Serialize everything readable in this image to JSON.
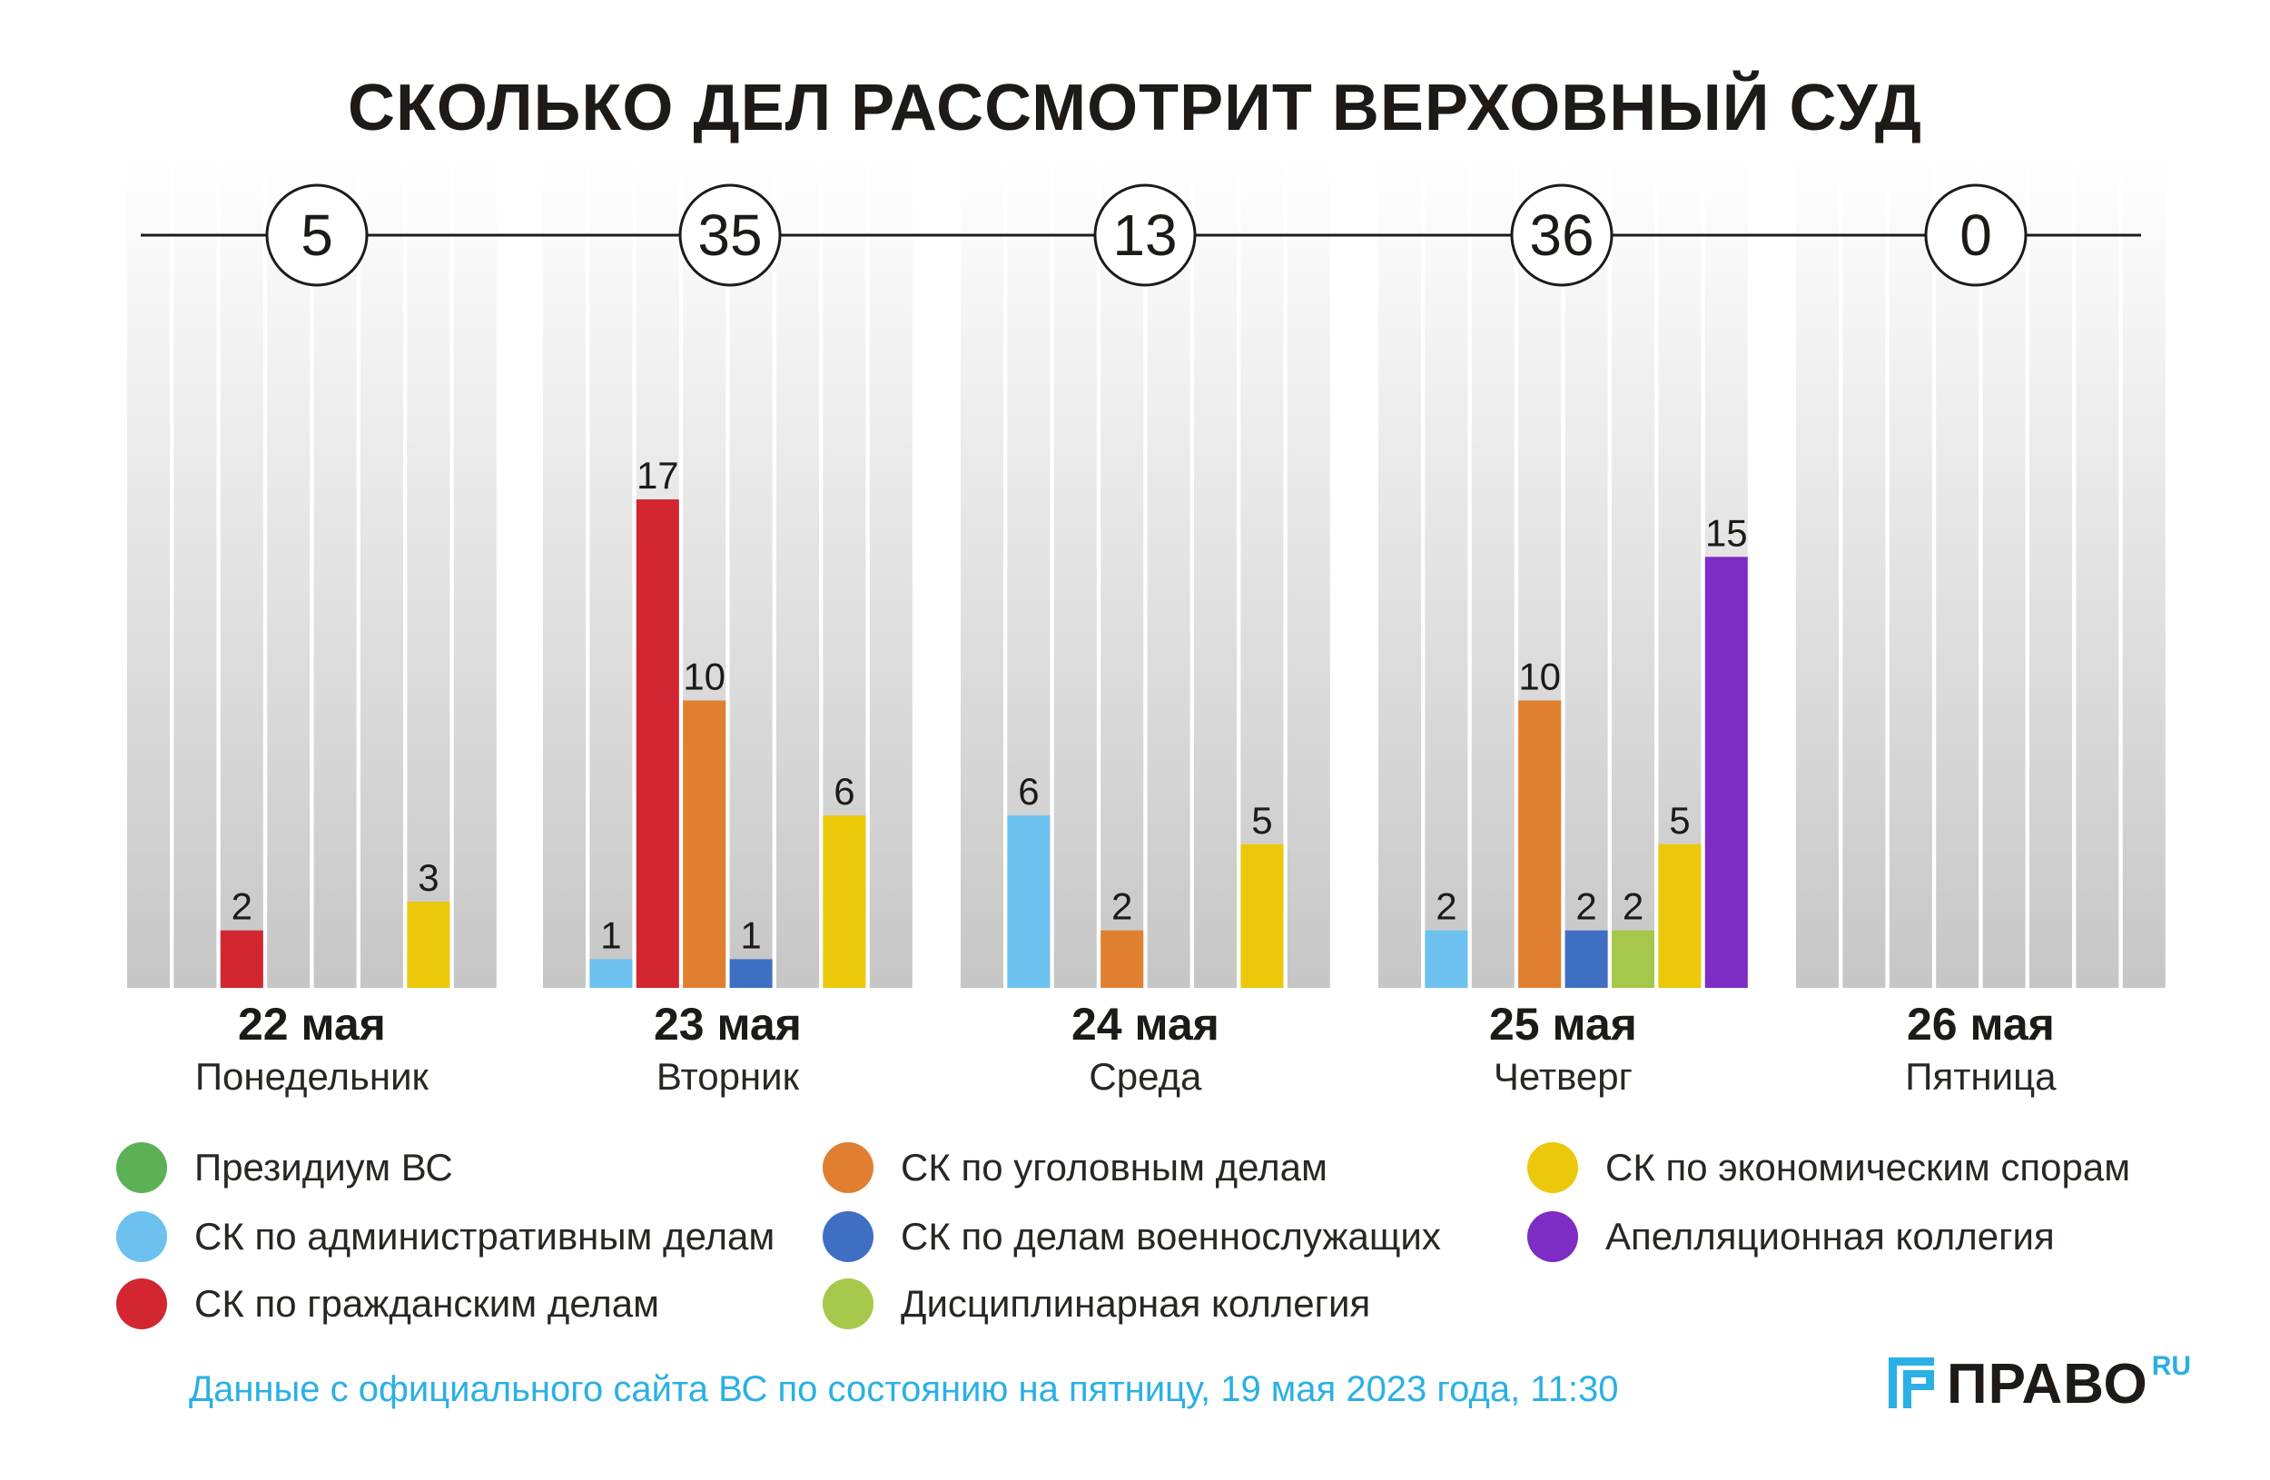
{
  "title": "СКОЛЬКО ДЕЛ РАССМОТРИТ ВЕРХОВНЫЙ СУД",
  "chart_data": {
    "type": "bar",
    "title": "СКОЛЬКО ДЕЛ РАССМОТРИТ ВЕРХОВНЫЙ СУД",
    "ylim": [
      0,
      17
    ],
    "days": [
      {
        "date": "22 мая",
        "weekday": "Понедельник",
        "total": "5"
      },
      {
        "date": "23 мая",
        "weekday": "Вторник",
        "total": "35"
      },
      {
        "date": "24 мая",
        "weekday": "Среда",
        "total": "13"
      },
      {
        "date": "25 мая",
        "weekday": "Четверг",
        "total": "36"
      },
      {
        "date": "26 мая",
        "weekday": "Пятница",
        "total": "0"
      }
    ],
    "series": [
      {
        "name": "Президиум ВС",
        "color": "#5cb156",
        "values": [
          0,
          0,
          0,
          0,
          0
        ]
      },
      {
        "name": "СК по административным делам",
        "color": "#6cc1ef",
        "values": [
          0,
          1,
          6,
          2,
          0
        ]
      },
      {
        "name": "СК по гражданским делам",
        "color": "#d22630",
        "values": [
          2,
          17,
          0,
          0,
          0
        ]
      },
      {
        "name": "СК по уголовным делам",
        "color": "#e07f2f",
        "values": [
          0,
          10,
          2,
          10,
          0
        ]
      },
      {
        "name": "СК по делам военнослужащих",
        "color": "#3f6fc2",
        "values": [
          0,
          1,
          0,
          2,
          0
        ]
      },
      {
        "name": "Дисциплинарная коллегия",
        "color": "#a5c84a",
        "values": [
          0,
          0,
          0,
          2,
          0
        ]
      },
      {
        "name": "СК по экономическим спорам",
        "color": "#ecc80a",
        "values": [
          3,
          6,
          5,
          5,
          0
        ]
      },
      {
        "name": "Апелляционная коллегия",
        "color": "#7d2cc4",
        "values": [
          0,
          0,
          0,
          15,
          0
        ]
      }
    ]
  },
  "source_note": "Данные с официального сайта ВС по состоянию на пятницу, 19 мая 2023 года, 11:30",
  "logo": {
    "text": "ПРАВО",
    "suffix": "RU"
  }
}
